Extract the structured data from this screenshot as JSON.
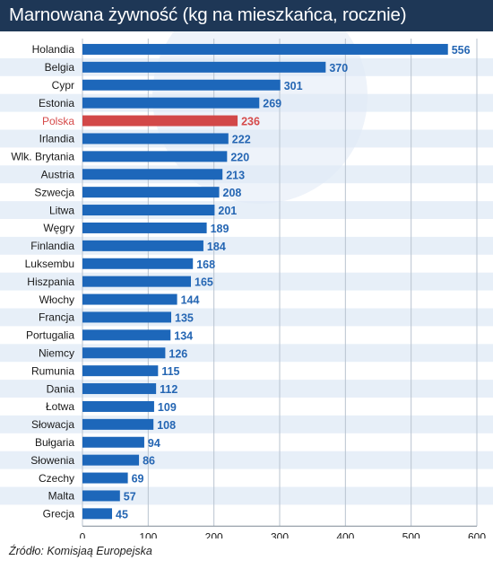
{
  "title": "Marnowana żywność (kg na mieszkańca, rocznie)",
  "source": "Źródło: Komisjaą Europejska",
  "colors": {
    "header": "#1e3756",
    "bar": "#1d67ba",
    "highlight": "#d24848",
    "stripe": "#dfe9f6",
    "value_text": "#2566b3"
  },
  "chart_data": {
    "type": "bar",
    "orientation": "horizontal",
    "title": "Marnowana żywność (kg na mieszkańca, rocznie)",
    "categories": [
      "Holandia",
      "Belgia",
      "Cypr",
      "Estonia",
      "Polska",
      "Irlandia",
      "Wlk. Brytania",
      "Austria",
      "Szwecja",
      "Litwa",
      "Węgry",
      "Finlandia",
      "Luksembu",
      "Hiszpania",
      "Włochy",
      "Francja",
      "Portugalia",
      "Niemcy",
      "Rumunia",
      "Dania",
      "Łotwa",
      "Słowacja",
      "Bułgaria",
      "Słowenia",
      "Czechy",
      "Malta",
      "Grecja"
    ],
    "values": [
      556,
      370,
      301,
      269,
      236,
      222,
      220,
      213,
      208,
      201,
      189,
      184,
      168,
      165,
      144,
      135,
      134,
      126,
      115,
      112,
      109,
      108,
      94,
      86,
      69,
      57,
      45
    ],
    "highlighted": "Polska",
    "xlim": [
      0,
      600
    ],
    "xticks": [
      0,
      100,
      200,
      300,
      400,
      500,
      600
    ],
    "grid": true
  }
}
